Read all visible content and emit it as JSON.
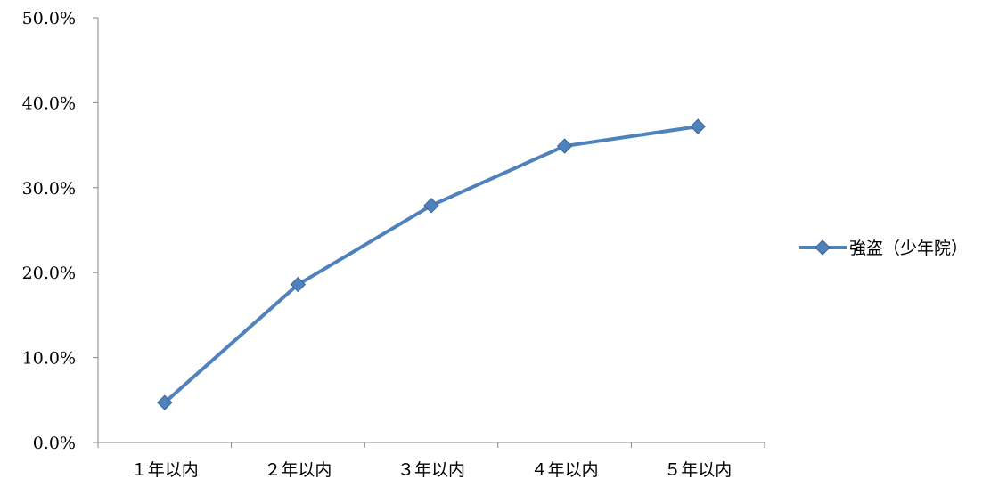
{
  "chart_data": {
    "type": "line",
    "categories": [
      "１年以内",
      "２年以内",
      "３年以内",
      "４年以内",
      "５年以内"
    ],
    "series": [
      {
        "name": "強盗（少年院）",
        "values": [
          4.7,
          18.6,
          27.9,
          34.9,
          37.2
        ],
        "color": "#4F81BD",
        "marker": "diamond"
      }
    ],
    "y_ticks": [
      "0.0%",
      "10.0%",
      "20.0%",
      "30.0%",
      "40.0%",
      "50.0%"
    ],
    "ylim": [
      0,
      50
    ],
    "y_unit": "%",
    "grid": false,
    "legend_position": "right",
    "title": "",
    "xlabel": "",
    "ylabel": ""
  }
}
